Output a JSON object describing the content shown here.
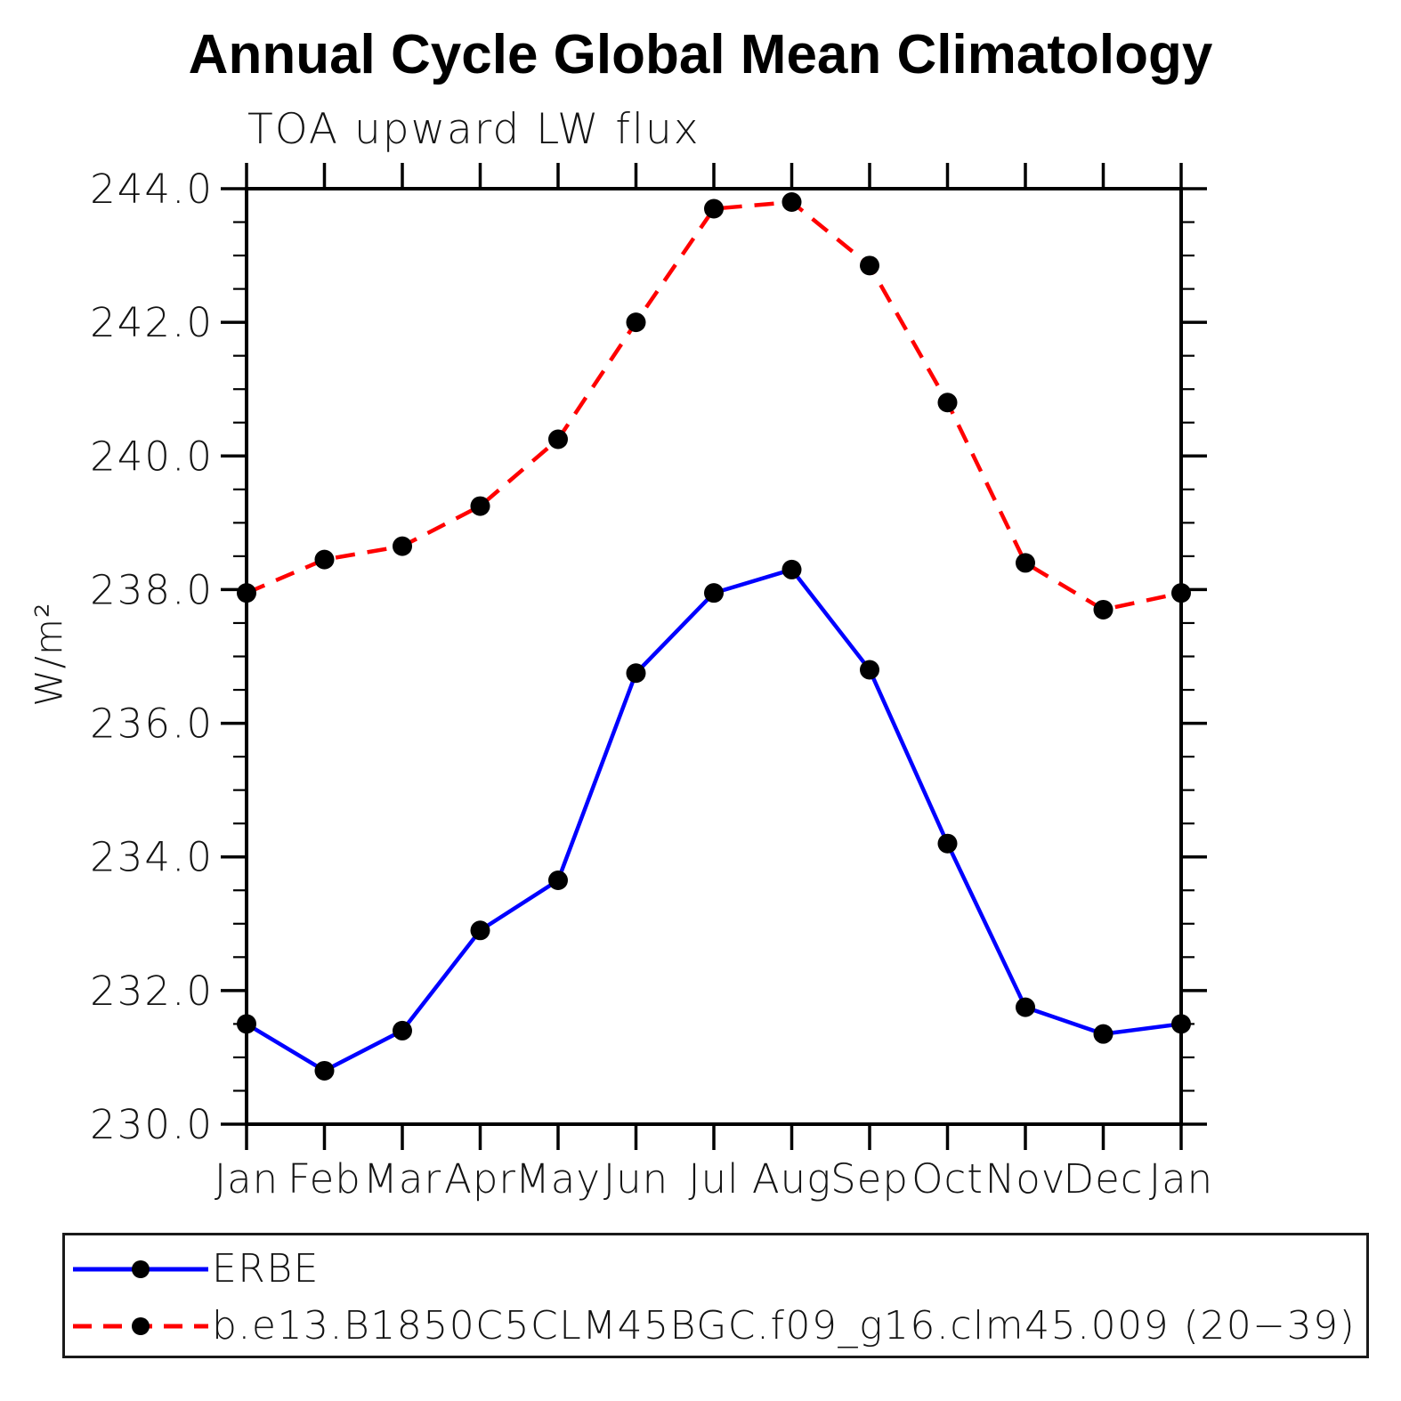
{
  "title": "Annual Cycle Global Mean Climatology",
  "subtitle": "TOA upward LW flux",
  "ylabel": "W/m²",
  "legend": {
    "marker_color": "#000000",
    "entries": [
      {
        "label": "ERBE",
        "color": "#0000ff",
        "style": "solid"
      },
      {
        "label": "b.e13.B1850C5CLM45BGC.f09_g16.clm45.009 (20−39)",
        "color": "#ff0000",
        "style": "dashed"
      }
    ]
  },
  "chart_data": {
    "type": "line",
    "title": "TOA upward LW flux",
    "xlabel": "",
    "ylabel": "W/m²",
    "categories": [
      "Jan",
      "Feb",
      "Mar",
      "Apr",
      "May",
      "Jun",
      "Jul",
      "Aug",
      "Sep",
      "Oct",
      "Nov",
      "Dec",
      "Jan"
    ],
    "series": [
      {
        "name": "ERBE",
        "color": "#0000ff",
        "dash": "solid",
        "marker": "circle",
        "marker_color": "#000000",
        "values": [
          231.5,
          230.8,
          231.4,
          232.9,
          233.65,
          236.75,
          237.95,
          238.3,
          236.8,
          234.2,
          231.75,
          231.35,
          231.5
        ]
      },
      {
        "name": "b.e13.B1850C5CLM45BGC.f09_g16.clm45.009 (20−39)",
        "color": "#ff0000",
        "dash": "dashed",
        "marker": "circle",
        "marker_color": "#000000",
        "values": [
          237.95,
          238.45,
          238.65,
          239.25,
          240.25,
          242.0,
          243.7,
          243.8,
          242.85,
          240.8,
          238.4,
          237.7,
          237.95
        ]
      }
    ],
    "ylim": [
      230.0,
      244.0
    ],
    "ytick_major": 2.0,
    "ytick_minor": 0.5,
    "ytick_labels": [
      "230.0",
      "232.0",
      "234.0",
      "236.0",
      "238.0",
      "240.0",
      "242.0",
      "244.0"
    ],
    "grid": false,
    "legend_position": "bottom"
  }
}
